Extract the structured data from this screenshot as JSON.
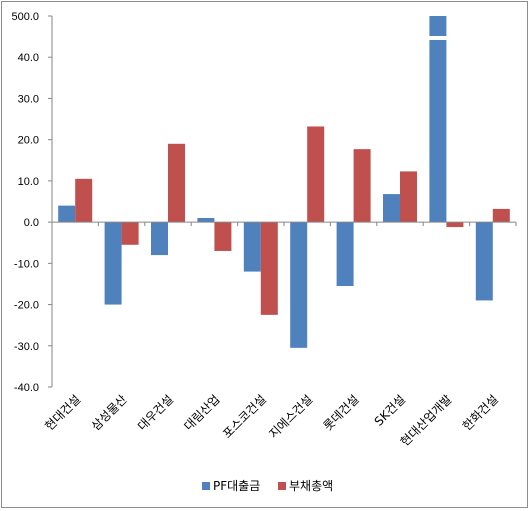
{
  "chart_data": {
    "type": "bar",
    "categories": [
      "현대건설",
      "삼성물산",
      "대우건설",
      "대림산업",
      "포스코건설",
      "지에스건설",
      "롯데건설",
      "SK건설",
      "현대산업개발",
      "한화건설"
    ],
    "series": [
      {
        "name": "PF대출금",
        "color": "#4f81bd",
        "values": [
          4.0,
          -20.0,
          -8.0,
          1.0,
          -12.0,
          -30.5,
          -15.5,
          6.8,
          460.0,
          -19.0
        ]
      },
      {
        "name": "부채총액",
        "color": "#c0504d",
        "values": [
          10.5,
          -5.5,
          19.0,
          -7.0,
          -22.5,
          23.2,
          17.7,
          12.3,
          -1.2,
          3.2
        ]
      }
    ],
    "y_ticks": [
      "500.0",
      "40.0",
      "30.0",
      "20.0",
      "10.0",
      "0.0",
      "-10.0",
      "-20.0",
      "-30.0",
      "-40.0"
    ],
    "ylim": [
      -40,
      50
    ],
    "axis_break": {
      "series": "PF대출금",
      "category": "현대산업개발"
    },
    "legend_position": "bottom",
    "grid": false,
    "title": "",
    "xlabel": "",
    "ylabel": ""
  }
}
